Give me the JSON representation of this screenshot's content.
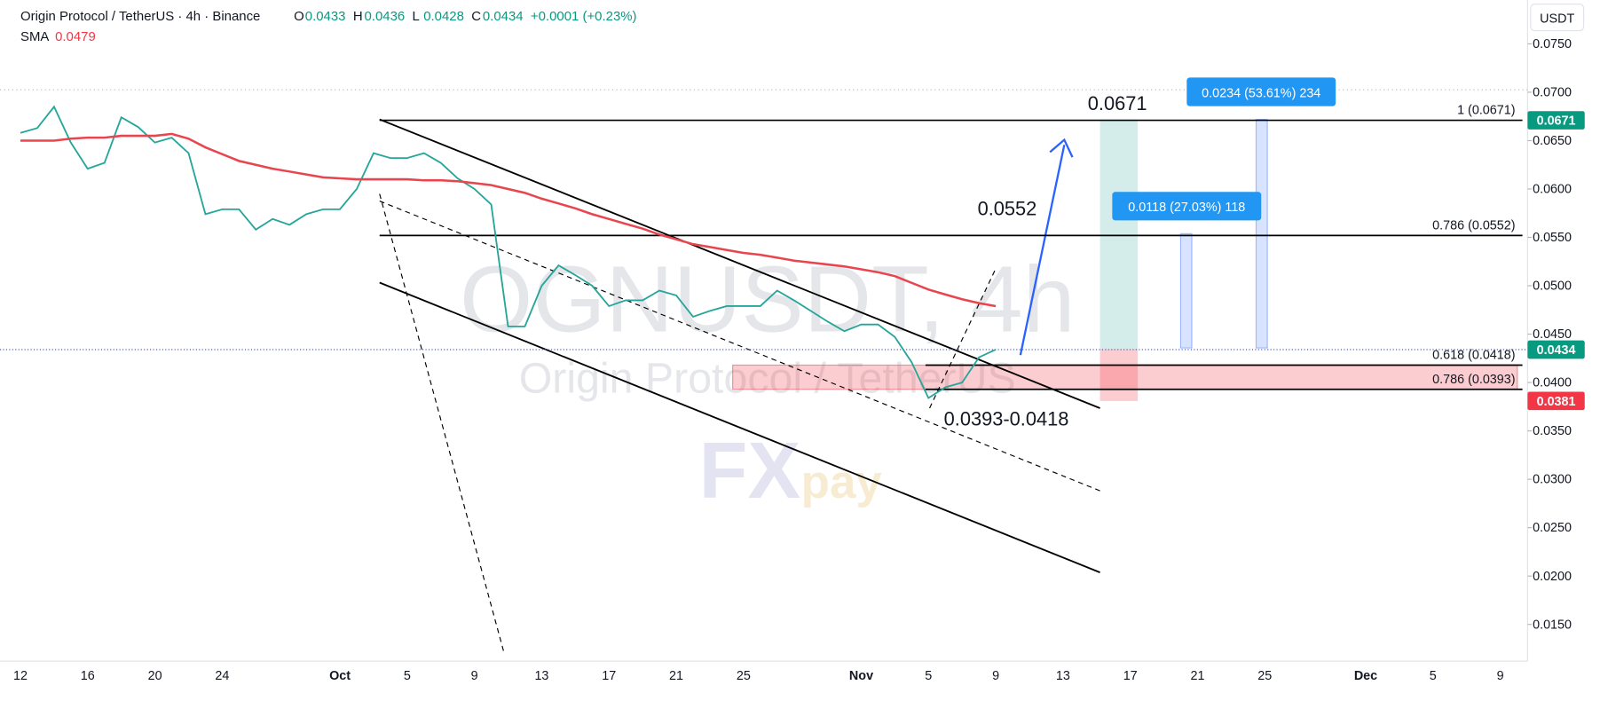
{
  "header": {
    "title": "Origin Protocol / TetherUS · 4h · Binance",
    "ohlc": [
      {
        "label": "O",
        "value": "0.0433"
      },
      {
        "label": "H",
        "value": "0.0436"
      },
      {
        "label": "L",
        "value": "0.0428"
      },
      {
        "label": "C",
        "value": "0.0434"
      }
    ],
    "change": "+0.0001 (+0.23%)",
    "sma_label": "SMA",
    "sma_value": "0.0479",
    "currency": "USDT"
  },
  "watermark": {
    "symbol": "OGNUSDT, 4h",
    "name": "Origin Protocol / TetherUS"
  },
  "chart_data": {
    "type": "line",
    "categories": [
      "12",
      null,
      null,
      null,
      "16",
      null,
      null,
      null,
      "20",
      null,
      null,
      null,
      "24",
      null,
      null,
      null,
      null,
      null,
      null,
      "Oct",
      null,
      null,
      null,
      "5",
      null,
      null,
      null,
      "9",
      null,
      null,
      null,
      "13",
      null,
      null,
      null,
      "17",
      null,
      null,
      null,
      "21",
      null,
      null,
      null,
      "25",
      null,
      null,
      null,
      null,
      null,
      null,
      "Nov",
      null,
      null,
      null,
      "5",
      null,
      null,
      null,
      "9",
      null,
      null,
      null,
      "13",
      null,
      null,
      null,
      "17",
      null,
      null,
      null,
      "21",
      null,
      null,
      null,
      "25",
      null,
      null,
      null,
      null,
      null,
      "Dec",
      null,
      null,
      null,
      "5",
      null,
      null,
      null,
      "9",
      null
    ],
    "series": [
      {
        "name": "OGNUSDT",
        "color": "#26a69a",
        "values": [
          0.0658,
          0.0663,
          0.0685,
          0.0648,
          0.0621,
          0.0627,
          0.0674,
          0.0664,
          0.0648,
          0.0653,
          0.0637,
          0.0574,
          0.0579,
          0.0579,
          0.0558,
          0.0569,
          0.0563,
          0.0574,
          0.0579,
          0.0579,
          0.06,
          0.0637,
          0.0632,
          0.0632,
          0.0637,
          0.0627,
          0.0611,
          0.06,
          0.0584,
          0.0458,
          0.0458,
          0.05,
          0.0521,
          0.0511,
          0.05,
          0.0479,
          0.0485,
          0.0485,
          0.0495,
          0.049,
          0.0468,
          0.0474,
          0.0479,
          0.0479,
          0.0479,
          0.0495,
          0.0485,
          0.0474,
          0.0463,
          0.0453,
          0.046,
          0.046,
          0.0447,
          0.0421,
          0.0384,
          0.0395,
          0.04,
          0.0426,
          0.0434,
          null,
          null,
          null,
          null,
          null,
          null,
          null,
          null,
          null,
          null,
          null,
          null,
          null,
          null,
          null,
          null,
          null,
          null,
          null,
          null,
          null,
          null,
          null,
          null,
          null,
          null,
          null,
          null,
          null,
          null,
          null
        ]
      },
      {
        "name": "SMA",
        "color": "#e8454f",
        "values": [
          0.065,
          0.065,
          0.065,
          0.0652,
          0.0653,
          0.0653,
          0.0655,
          0.0655,
          0.0655,
          0.0657,
          0.0652,
          0.0643,
          0.0636,
          0.0629,
          0.0625,
          0.0621,
          0.0618,
          0.0615,
          0.0612,
          0.0611,
          0.061,
          0.061,
          0.061,
          0.061,
          0.0609,
          0.0609,
          0.0608,
          0.0606,
          0.0604,
          0.06,
          0.0596,
          0.059,
          0.0585,
          0.058,
          0.0574,
          0.0569,
          0.0564,
          0.0559,
          0.0553,
          0.0548,
          0.0543,
          0.054,
          0.0537,
          0.0534,
          0.0532,
          0.0529,
          0.0526,
          0.0524,
          0.0522,
          0.052,
          0.0517,
          0.0514,
          0.051,
          0.0503,
          0.0496,
          0.0491,
          0.0486,
          0.0482,
          0.0479,
          null,
          null,
          null,
          null,
          null,
          null,
          null,
          null,
          null,
          null,
          null,
          null,
          null,
          null,
          null,
          null,
          null,
          null,
          null,
          null,
          null,
          null,
          null,
          null,
          null,
          null,
          null,
          null,
          null,
          null,
          null
        ]
      }
    ],
    "ylim": [
      0.0112,
      0.07953
    ],
    "yticks": [
      {
        "value": 0.015,
        "label": "0.0150"
      },
      {
        "value": 0.02,
        "label": "0.0200"
      },
      {
        "value": 0.025,
        "label": "0.0250"
      },
      {
        "value": 0.03,
        "label": "0.0300"
      },
      {
        "value": 0.035,
        "label": "0.0350"
      },
      {
        "value": 0.04,
        "label": "0.0400"
      },
      {
        "value": 0.045,
        "label": "0.0450"
      },
      {
        "value": 0.05,
        "label": "0.0500"
      },
      {
        "value": 0.055,
        "label": "0.0550"
      },
      {
        "value": 0.06,
        "label": "0.0600"
      },
      {
        "value": 0.065,
        "label": "0.0650"
      },
      {
        "value": 0.07,
        "label": "0.0700"
      },
      {
        "value": 0.075,
        "label": "0.0750"
      }
    ],
    "levels": [
      {
        "value": 0.0671,
        "label": "1 (0.0671)"
      },
      {
        "value": 0.0552,
        "label": "0.786 (0.0552)"
      },
      {
        "value": 0.0418,
        "label": "0.618 (0.0418)"
      },
      {
        "value": 0.0393,
        "label": "0.786 (0.0393)"
      }
    ],
    "price_labels": [
      {
        "value": 0.0671,
        "label": "0.0671",
        "color": "#089981"
      },
      {
        "value": 0.0434,
        "label": "0.0434",
        "color": "#089981"
      },
      {
        "value": 0.0381,
        "label": "0.0381",
        "color": "#f23645"
      }
    ],
    "annotations": {
      "target": "0.0671",
      "mid_target": "0.0552",
      "zone": "0.0393-0.0418",
      "measure_high": "0.0234 (53.61%) 234",
      "measure_low": "0.0118 (27.03%) 118"
    }
  }
}
